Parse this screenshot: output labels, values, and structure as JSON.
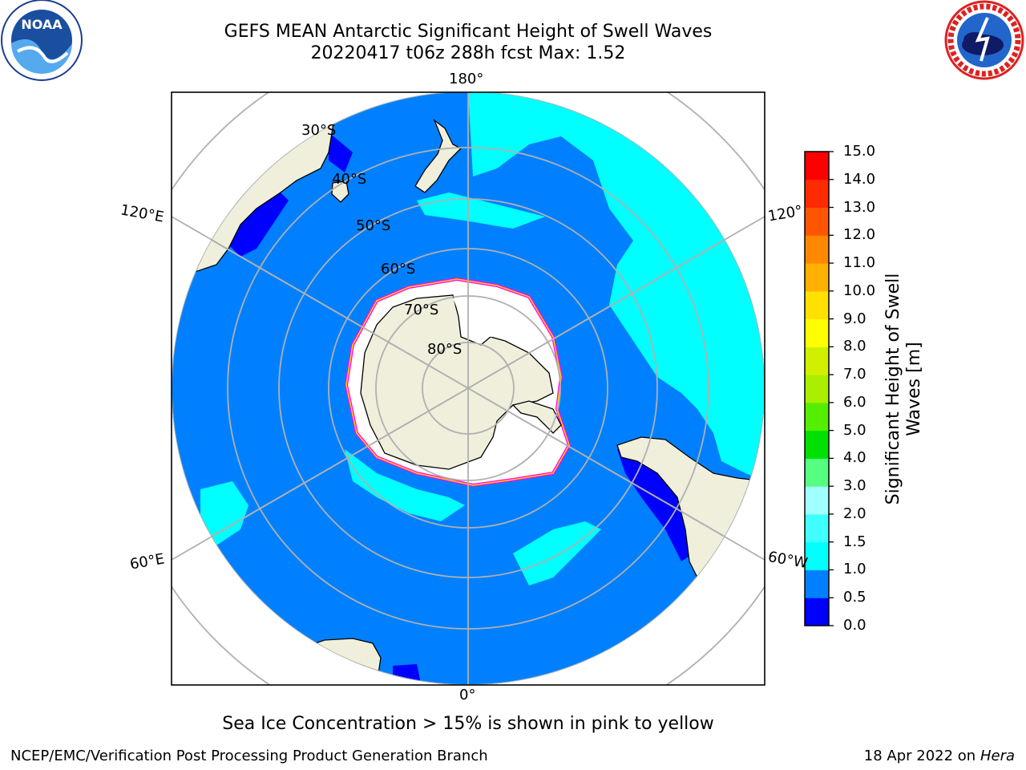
{
  "header": {
    "title_line1": "GEFS MEAN Antarctic Significant Height of Swell Waves",
    "title_line2": "20220417 t06z 288h fcst   Max: 1.52"
  },
  "logos": {
    "left": "noaa-logo",
    "left_text": "NOAA",
    "right": "national-weather-service-logo"
  },
  "map": {
    "projection": "south-polar-stereographic",
    "longitude_labels": {
      "top": "180°",
      "bottom": "0°",
      "left_upper": "120°E",
      "left_lower": "60°E",
      "right_upper": "120°",
      "right_lower": "60°W"
    },
    "latitude_labels": [
      "30°S",
      "40°S",
      "50°S",
      "60°S",
      "70°S",
      "80°S"
    ],
    "colors": {
      "land": "#efefdc",
      "ocean_0_5_1": "#0080ff",
      "ocean_1_1_5": "#00ffff",
      "ocean_0_0_5": "#0000ff",
      "ice": "#ffffff",
      "ice_edge": "#ff00ff",
      "grid": "#b0b0b0"
    }
  },
  "colorbar": {
    "label": "Significant Height of Swell Waves [m]",
    "label_line1": "Significant Height of Swell",
    "label_line2": "Waves [m]",
    "ticks": [
      "0.0",
      "0.5",
      "1.0",
      "1.5",
      "2.0",
      "3.0",
      "4.0",
      "5.0",
      "6.0",
      "7.0",
      "8.0",
      "9.0",
      "10.0",
      "11.0",
      "12.0",
      "13.0",
      "14.0",
      "15.0"
    ],
    "colors": [
      "#0000ff",
      "#0080ff",
      "#00ffff",
      "#40ffff",
      "#a0ffff",
      "#55ff80",
      "#00e000",
      "#55ee00",
      "#aaee00",
      "#d0f000",
      "#ffff00",
      "#ffe000",
      "#ffb000",
      "#ff8800",
      "#ff5500",
      "#ff2a00",
      "#ff0000"
    ]
  },
  "note": "Sea Ice Concentration > 15% is shown in pink to yellow",
  "footer": {
    "left": "NCEP/EMC/Verification Post Processing Product Generation Branch",
    "right_prefix": "18 Apr 2022 on ",
    "right_host": "Hera"
  }
}
